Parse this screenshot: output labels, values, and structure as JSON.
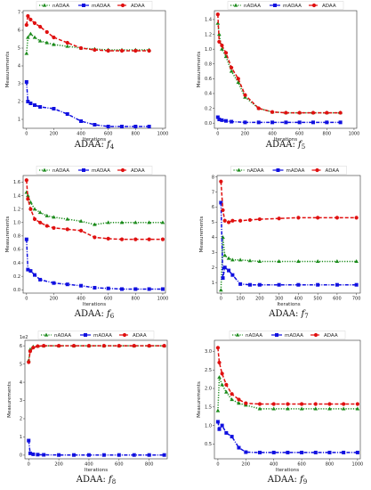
{
  "colors": {
    "nADAA": "#1a8a1a",
    "mADAA": "#1010e0",
    "ADAA": "#e01010"
  },
  "legend": [
    "nADAA",
    "mADAA",
    "ADAA"
  ],
  "ylabel": "Measurements",
  "xlabel": "Iterations",
  "chart_data": [
    {
      "type": "line",
      "caption": "ADAA: f4",
      "xlim": [
        -25,
        1020
      ],
      "ylim": [
        0.5,
        7.1
      ],
      "xticks": [
        0,
        200,
        400,
        600,
        800,
        1000
      ],
      "yticks": [
        1,
        2,
        3,
        4,
        5,
        6,
        7
      ],
      "series": [
        {
          "name": "nADAA",
          "x": [
            0,
            10,
            30,
            60,
            100,
            150,
            200,
            300,
            400,
            500,
            600,
            700,
            800,
            900
          ],
          "y": [
            4.7,
            5.6,
            5.8,
            5.6,
            5.4,
            5.3,
            5.2,
            5.1,
            5.0,
            4.95,
            4.9,
            4.9,
            4.9,
            4.9
          ]
        },
        {
          "name": "mADAA",
          "x": [
            0,
            10,
            30,
            60,
            100,
            200,
            300,
            400,
            500,
            600,
            700,
            800,
            900
          ],
          "y": [
            3.1,
            2.0,
            1.9,
            1.8,
            1.7,
            1.6,
            1.3,
            0.9,
            0.7,
            0.6,
            0.6,
            0.6,
            0.6
          ]
        },
        {
          "name": "ADAA",
          "x": [
            0,
            10,
            30,
            60,
            100,
            150,
            200,
            300,
            400,
            500,
            600,
            700,
            800,
            900
          ],
          "y": [
            6.3,
            6.8,
            6.6,
            6.4,
            6.2,
            5.9,
            5.6,
            5.3,
            5.0,
            4.9,
            4.85,
            4.85,
            4.85,
            4.85
          ]
        }
      ]
    },
    {
      "type": "line",
      "caption": "ADAA: f5",
      "xlim": [
        -25,
        1020
      ],
      "ylim": [
        -0.07,
        1.52
      ],
      "xticks": [
        0,
        200,
        400,
        600,
        800,
        1000
      ],
      "yticks": [
        0.0,
        0.2,
        0.4,
        0.6,
        0.8,
        1.0,
        1.2,
        1.4
      ],
      "series": [
        {
          "name": "nADAA",
          "x": [
            0,
            10,
            30,
            60,
            100,
            150,
            200,
            300,
            400,
            500,
            600,
            700,
            800,
            900
          ],
          "y": [
            1.35,
            1.2,
            1.0,
            0.9,
            0.7,
            0.55,
            0.35,
            0.2,
            0.15,
            0.14,
            0.14,
            0.14,
            0.14,
            0.14
          ]
        },
        {
          "name": "mADAA",
          "x": [
            0,
            10,
            30,
            60,
            100,
            200,
            300,
            400,
            500,
            600,
            700,
            800,
            900
          ],
          "y": [
            0.08,
            0.05,
            0.04,
            0.03,
            0.02,
            0.01,
            0.01,
            0.01,
            0.01,
            0.01,
            0.01,
            0.01,
            0.01
          ]
        },
        {
          "name": "ADAA",
          "x": [
            0,
            10,
            30,
            60,
            100,
            150,
            200,
            300,
            400,
            500,
            600,
            700,
            800,
            900
          ],
          "y": [
            1.47,
            1.1,
            1.05,
            0.95,
            0.75,
            0.6,
            0.38,
            0.2,
            0.15,
            0.14,
            0.14,
            0.14,
            0.14,
            0.14
          ]
        }
      ]
    },
    {
      "type": "line",
      "caption": "ADAA: f6",
      "xlim": [
        -25,
        1020
      ],
      "ylim": [
        -0.05,
        1.7
      ],
      "xticks": [
        0,
        200,
        400,
        600,
        800,
        1000
      ],
      "yticks": [
        0.0,
        0.2,
        0.4,
        0.6,
        0.8,
        1.0,
        1.2,
        1.4,
        1.6
      ],
      "series": [
        {
          "name": "nADAA",
          "x": [
            0,
            10,
            30,
            60,
            100,
            150,
            200,
            300,
            400,
            500,
            600,
            700,
            800,
            900,
            1000
          ],
          "y": [
            1.45,
            1.4,
            1.3,
            1.2,
            1.15,
            1.1,
            1.08,
            1.05,
            1.02,
            0.97,
            1.0,
            1.0,
            1.0,
            1.0,
            1.0
          ]
        },
        {
          "name": "mADAA",
          "x": [
            0,
            10,
            30,
            60,
            100,
            200,
            300,
            400,
            500,
            600,
            700,
            800,
            900,
            1000
          ],
          "y": [
            0.75,
            0.3,
            0.28,
            0.22,
            0.15,
            0.1,
            0.08,
            0.06,
            0.03,
            0.02,
            0.01,
            0.01,
            0.01,
            0.01
          ]
        },
        {
          "name": "ADAA",
          "x": [
            0,
            10,
            30,
            60,
            100,
            150,
            200,
            300,
            400,
            500,
            600,
            700,
            800,
            900,
            1000
          ],
          "y": [
            1.63,
            1.35,
            1.2,
            1.05,
            1.0,
            0.95,
            0.92,
            0.9,
            0.88,
            0.78,
            0.76,
            0.75,
            0.75,
            0.75,
            0.75
          ]
        }
      ]
    },
    {
      "type": "line",
      "caption": "ADAA: f7",
      "xlim": [
        -20,
        720
      ],
      "ylim": [
        0.3,
        8.1
      ],
      "xticks": [
        0,
        100,
        200,
        300,
        400,
        500,
        600,
        700
      ],
      "yticks": [
        1,
        2,
        3,
        4,
        5,
        6,
        7,
        8
      ],
      "series": [
        {
          "name": "nADAA",
          "x": [
            0,
            10,
            20,
            40,
            60,
            100,
            150,
            200,
            300,
            400,
            500,
            600,
            700
          ],
          "y": [
            0.5,
            4.0,
            2.8,
            2.6,
            2.5,
            2.5,
            2.45,
            2.4,
            2.4,
            2.4,
            2.4,
            2.4,
            2.4
          ]
        },
        {
          "name": "mADAA",
          "x": [
            0,
            10,
            20,
            40,
            60,
            100,
            150,
            200,
            300,
            400,
            500,
            600,
            700
          ],
          "y": [
            6.3,
            1.3,
            2.0,
            1.8,
            1.5,
            0.9,
            0.85,
            0.85,
            0.85,
            0.85,
            0.85,
            0.85,
            0.85
          ]
        },
        {
          "name": "ADAA",
          "x": [
            0,
            10,
            20,
            40,
            60,
            100,
            150,
            200,
            300,
            400,
            500,
            600,
            700
          ],
          "y": [
            7.7,
            5.8,
            5.1,
            5.0,
            5.1,
            5.1,
            5.15,
            5.2,
            5.25,
            5.3,
            5.3,
            5.3,
            5.3
          ]
        }
      ]
    },
    {
      "type": "line",
      "caption": "ADAA: f8",
      "yscale_label": "1e2",
      "xlim": [
        -25,
        920
      ],
      "ylim": [
        -0.2,
        6.3
      ],
      "xticks": [
        0,
        200,
        400,
        600,
        800
      ],
      "yticks": [
        0,
        1,
        2,
        3,
        4,
        5,
        6
      ],
      "series": [
        {
          "name": "nADAA",
          "x": [
            0,
            10,
            30,
            60,
            100,
            200,
            300,
            400,
            500,
            600,
            700,
            800,
            900
          ],
          "y": [
            5.2,
            5.8,
            5.95,
            5.98,
            6.0,
            6.0,
            6.0,
            6.0,
            6.0,
            6.0,
            6.0,
            6.0,
            6.0
          ]
        },
        {
          "name": "mADAA",
          "x": [
            0,
            10,
            30,
            60,
            100,
            200,
            300,
            400,
            500,
            600,
            700,
            800,
            900
          ],
          "y": [
            0.8,
            0.1,
            0.05,
            0.03,
            0.02,
            0.01,
            0.01,
            0.01,
            0.01,
            0.01,
            0.01,
            0.01,
            0.01
          ]
        },
        {
          "name": "ADAA",
          "x": [
            0,
            10,
            30,
            60,
            100,
            200,
            300,
            400,
            500,
            600,
            700,
            800,
            900
          ],
          "y": [
            5.1,
            5.7,
            5.9,
            5.98,
            6.0,
            6.0,
            6.0,
            6.0,
            6.0,
            6.0,
            6.0,
            6.0,
            6.0
          ]
        }
      ]
    },
    {
      "type": "line",
      "caption": "ADAA: f9",
      "xlim": [
        -25,
        1020
      ],
      "ylim": [
        0.1,
        3.3
      ],
      "xticks": [
        0,
        200,
        400,
        600,
        800,
        1000
      ],
      "yticks": [
        0.5,
        1.0,
        1.5,
        2.0,
        2.5,
        3.0
      ],
      "series": [
        {
          "name": "nADAA",
          "x": [
            0,
            10,
            30,
            60,
            100,
            150,
            200,
            300,
            400,
            500,
            600,
            700,
            800,
            900,
            1000
          ],
          "y": [
            1.4,
            2.3,
            2.1,
            1.9,
            1.7,
            1.6,
            1.55,
            1.45,
            1.45,
            1.45,
            1.45,
            1.45,
            1.45,
            1.45,
            1.45
          ]
        },
        {
          "name": "mADAA",
          "x": [
            0,
            10,
            30,
            60,
            100,
            150,
            200,
            300,
            400,
            500,
            600,
            700,
            800,
            900,
            1000
          ],
          "y": [
            1.1,
            0.9,
            1.0,
            0.8,
            0.7,
            0.4,
            0.28,
            0.27,
            0.27,
            0.27,
            0.27,
            0.27,
            0.27,
            0.27,
            0.27
          ]
        },
        {
          "name": "ADAA",
          "x": [
            0,
            10,
            30,
            60,
            100,
            150,
            200,
            300,
            400,
            500,
            600,
            700,
            800,
            900,
            1000
          ],
          "y": [
            3.1,
            2.7,
            2.4,
            2.1,
            1.85,
            1.7,
            1.6,
            1.58,
            1.58,
            1.58,
            1.58,
            1.58,
            1.58,
            1.58,
            1.58
          ]
        }
      ]
    }
  ]
}
